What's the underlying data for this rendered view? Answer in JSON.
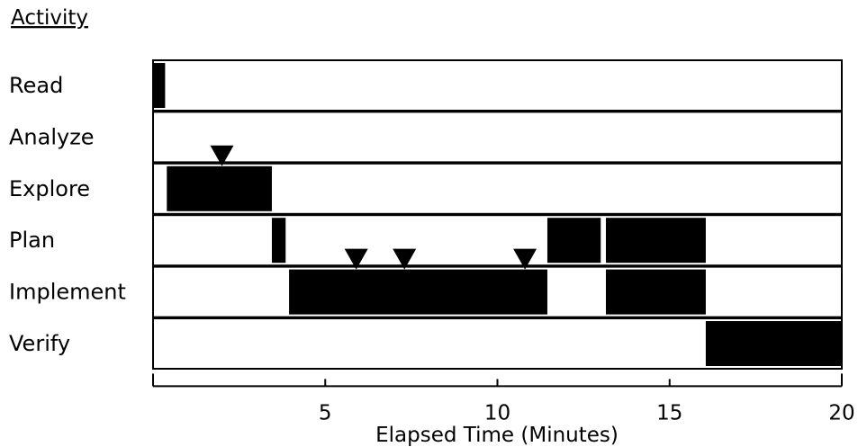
{
  "chart_data": {
    "type": "timeline",
    "title": "Activity",
    "xlabel": "Elapsed Time (Minutes)",
    "xlim": [
      0,
      20
    ],
    "xticks": [
      5,
      10,
      15,
      20
    ],
    "categories": [
      "Read",
      "Analyze",
      "Explore",
      "Plan",
      "Implement",
      "Verify"
    ],
    "segments": [
      {
        "activity": "Read",
        "start": 0.0,
        "end": 0.35
      },
      {
        "activity": "Explore",
        "start": 0.4,
        "end": 3.45
      },
      {
        "activity": "Plan",
        "start": 3.45,
        "end": 3.85
      },
      {
        "activity": "Implement",
        "start": 3.95,
        "end": 11.45
      },
      {
        "activity": "Plan",
        "start": 11.45,
        "end": 13.0
      },
      {
        "activity": "Plan",
        "start": 13.15,
        "end": 16.05
      },
      {
        "activity": "Implement",
        "start": 13.15,
        "end": 16.05
      },
      {
        "activity": "Verify",
        "start": 16.05,
        "end": 20.0
      }
    ],
    "markers": [
      {
        "activity": "Explore",
        "x": 2.0
      },
      {
        "activity": "Implement",
        "x": 5.9
      },
      {
        "activity": "Implement",
        "x": 7.3
      },
      {
        "activity": "Implement",
        "x": 10.8
      }
    ],
    "colors": {
      "bar": "#000000",
      "background": "#ffffff"
    }
  }
}
